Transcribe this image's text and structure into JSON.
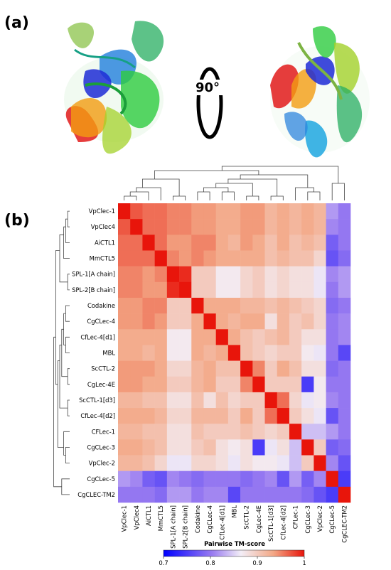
{
  "panel_a_label": "(a)",
  "panel_b_label": "(b)",
  "rotation_label": "90°",
  "chart_data": {
    "type": "heatmap",
    "labels": [
      "VpClec-1",
      "VpClec4",
      "AiCTL1",
      "MmCTL5",
      "SPL-1[A chain]",
      "SPL-2[B chain]",
      "Codakine",
      "CgCLec-4",
      "CfLec-4[d1]",
      "MBL",
      "ScCTL-2",
      "CgLec-4E",
      "ScCTL-1[d3]",
      "CfLec-4[d2]",
      "CFLec-1",
      "CgCLec-3",
      "VpClec-2",
      "CgCLec-5",
      "CgCLEC-TM2"
    ],
    "values": [
      [
        1.0,
        0.97,
        0.96,
        0.96,
        0.95,
        0.95,
        0.94,
        0.94,
        0.93,
        0.93,
        0.94,
        0.94,
        0.92,
        0.93,
        0.92,
        0.93,
        0.92,
        0.82,
        0.8
      ],
      [
        0.97,
        1.0,
        0.96,
        0.96,
        0.95,
        0.95,
        0.94,
        0.94,
        0.93,
        0.93,
        0.94,
        0.94,
        0.92,
        0.93,
        0.92,
        0.93,
        0.92,
        0.81,
        0.8
      ],
      [
        0.96,
        0.96,
        1.0,
        0.96,
        0.94,
        0.94,
        0.95,
        0.95,
        0.93,
        0.92,
        0.94,
        0.93,
        0.91,
        0.93,
        0.91,
        0.92,
        0.91,
        0.78,
        0.8
      ],
      [
        0.96,
        0.96,
        0.96,
        1.0,
        0.95,
        0.94,
        0.95,
        0.94,
        0.93,
        0.93,
        0.93,
        0.93,
        0.91,
        0.92,
        0.91,
        0.91,
        0.89,
        0.77,
        0.79
      ],
      [
        0.95,
        0.95,
        0.94,
        0.95,
        1.0,
        0.99,
        0.9,
        0.9,
        0.87,
        0.87,
        0.89,
        0.9,
        0.88,
        0.89,
        0.88,
        0.88,
        0.86,
        0.81,
        0.82
      ],
      [
        0.95,
        0.95,
        0.94,
        0.94,
        0.99,
        1.0,
        0.9,
        0.9,
        0.87,
        0.87,
        0.89,
        0.9,
        0.88,
        0.89,
        0.88,
        0.88,
        0.86,
        0.8,
        0.82
      ],
      [
        0.94,
        0.94,
        0.95,
        0.95,
        0.9,
        0.9,
        1.0,
        0.93,
        0.93,
        0.93,
        0.92,
        0.92,
        0.91,
        0.92,
        0.91,
        0.9,
        0.89,
        0.79,
        0.8
      ],
      [
        0.94,
        0.94,
        0.95,
        0.94,
        0.9,
        0.9,
        0.93,
        1.0,
        0.93,
        0.92,
        0.93,
        0.93,
        0.88,
        0.92,
        0.9,
        0.91,
        0.89,
        0.8,
        0.81
      ],
      [
        0.93,
        0.93,
        0.93,
        0.93,
        0.87,
        0.87,
        0.93,
        0.93,
        1.0,
        0.93,
        0.91,
        0.9,
        0.91,
        0.92,
        0.9,
        0.88,
        0.88,
        0.8,
        0.81
      ],
      [
        0.93,
        0.93,
        0.92,
        0.93,
        0.87,
        0.87,
        0.93,
        0.92,
        0.93,
        1.0,
        0.91,
        0.9,
        0.89,
        0.9,
        0.9,
        0.87,
        0.86,
        0.8,
        0.76
      ],
      [
        0.94,
        0.94,
        0.94,
        0.93,
        0.89,
        0.89,
        0.92,
        0.93,
        0.91,
        0.91,
        1.0,
        0.95,
        0.9,
        0.93,
        0.91,
        0.88,
        0.88,
        0.79,
        0.8
      ],
      [
        0.94,
        0.94,
        0.93,
        0.93,
        0.9,
        0.9,
        0.92,
        0.93,
        0.9,
        0.9,
        0.95,
        1.0,
        0.9,
        0.9,
        0.9,
        0.75,
        0.87,
        0.8,
        0.8
      ],
      [
        0.92,
        0.92,
        0.91,
        0.91,
        0.88,
        0.88,
        0.91,
        0.88,
        0.91,
        0.89,
        0.9,
        0.9,
        1.0,
        0.96,
        0.89,
        0.86,
        0.87,
        0.81,
        0.8
      ],
      [
        0.93,
        0.93,
        0.93,
        0.92,
        0.89,
        0.89,
        0.92,
        0.92,
        0.92,
        0.9,
        0.93,
        0.9,
        0.96,
        1.0,
        0.9,
        0.88,
        0.86,
        0.77,
        0.8
      ],
      [
        0.92,
        0.92,
        0.91,
        0.91,
        0.88,
        0.88,
        0.91,
        0.9,
        0.9,
        0.9,
        0.91,
        0.9,
        0.89,
        0.9,
        1.0,
        0.84,
        0.84,
        0.82,
        0.8
      ],
      [
        0.93,
        0.93,
        0.92,
        0.91,
        0.88,
        0.88,
        0.9,
        0.91,
        0.88,
        0.87,
        0.88,
        0.75,
        0.86,
        0.88,
        0.84,
        1.0,
        0.9,
        0.78,
        0.79
      ],
      [
        0.92,
        0.92,
        0.91,
        0.89,
        0.86,
        0.86,
        0.89,
        0.89,
        0.88,
        0.86,
        0.88,
        0.87,
        0.87,
        0.86,
        0.84,
        0.9,
        1.0,
        0.81,
        0.77
      ],
      [
        0.82,
        0.81,
        0.78,
        0.77,
        0.81,
        0.8,
        0.79,
        0.8,
        0.8,
        0.8,
        0.79,
        0.8,
        0.81,
        0.77,
        0.82,
        0.78,
        0.81,
        1.0,
        0.75
      ],
      [
        0.8,
        0.8,
        0.8,
        0.79,
        0.82,
        0.82,
        0.8,
        0.81,
        0.81,
        0.76,
        0.8,
        0.8,
        0.8,
        0.8,
        0.8,
        0.79,
        0.77,
        0.75,
        1.0
      ]
    ],
    "colorbar": {
      "title": "Pairwise TM-score",
      "range": [
        0.7,
        1.0
      ],
      "ticks": [
        "0.7",
        "0.8",
        "0.9",
        "1"
      ],
      "tick_values": [
        0.7,
        0.8,
        0.9,
        1.0
      ],
      "colors": {
        "low": "#0000ff",
        "mid": "#f5f0f7",
        "high": "#e8150b"
      }
    },
    "dendrogram_on_top": true,
    "dendrogram_on_left": true
  }
}
